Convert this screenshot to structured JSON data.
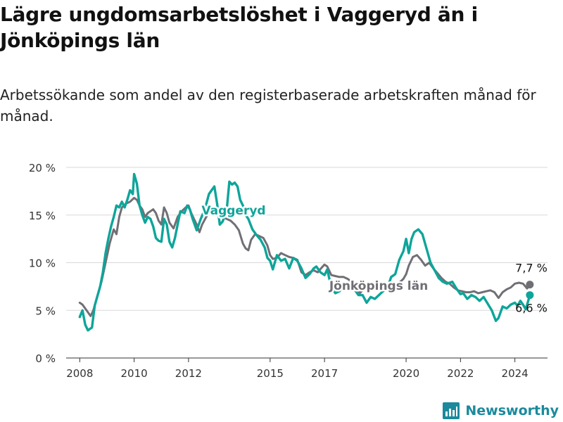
{
  "title": "Lägre ungdomsarbetslöshet i Vaggeryd än i Jönköpings län",
  "subtitle": "Arbetssökande som andel av den registerbaserade arbetskraften månad för månad.",
  "branding": {
    "name": "Newsworthy"
  },
  "colors": {
    "vaggeryd": "#0ea59a",
    "lan": "#716f75",
    "grid": "#d9d9d9",
    "axis": "#333333"
  },
  "chart_data": {
    "type": "line",
    "title": "Lägre ungdomsarbetslöshet i Vaggeryd än i Jönköpings län",
    "xlabel": "",
    "ylabel": "",
    "xlim": [
      2007.5,
      2025.2
    ],
    "ylim": [
      0,
      20
    ],
    "y_ticks": [
      0,
      5,
      10,
      15,
      20
    ],
    "y_tick_labels": [
      "0 %",
      "5 %",
      "10 %",
      "15 %",
      "20 %"
    ],
    "x_ticks": [
      2008,
      2010,
      2012,
      2015,
      2017,
      2020,
      2022,
      2024
    ],
    "x_tick_labels": [
      "2008",
      "2010",
      "2012",
      "2015",
      "2017",
      "2020",
      "2022",
      "2024"
    ],
    "grid": true,
    "series": [
      {
        "name": "Jönköpings län",
        "label": "Jönköpings län",
        "end_label": "7,7 %",
        "end_value": 7.7,
        "points": [
          [
            2008.0,
            5.8
          ],
          [
            2008.1,
            5.6
          ],
          [
            2008.25,
            5.0
          ],
          [
            2008.4,
            4.4
          ],
          [
            2008.5,
            5.0
          ],
          [
            2008.65,
            6.5
          ],
          [
            2008.8,
            8.0
          ],
          [
            2008.95,
            10.0
          ],
          [
            2009.1,
            12.0
          ],
          [
            2009.25,
            13.5
          ],
          [
            2009.35,
            13.0
          ],
          [
            2009.45,
            14.8
          ],
          [
            2009.55,
            15.8
          ],
          [
            2009.7,
            16.2
          ],
          [
            2009.85,
            16.4
          ],
          [
            2010.0,
            16.8
          ],
          [
            2010.1,
            16.6
          ],
          [
            2010.2,
            16.0
          ],
          [
            2010.3,
            15.6
          ],
          [
            2010.4,
            14.8
          ],
          [
            2010.5,
            15.2
          ],
          [
            2010.6,
            15.4
          ],
          [
            2010.7,
            15.6
          ],
          [
            2010.8,
            15.2
          ],
          [
            2010.9,
            14.4
          ],
          [
            2011.0,
            14.0
          ],
          [
            2011.1,
            15.8
          ],
          [
            2011.2,
            15.2
          ],
          [
            2011.3,
            14.2
          ],
          [
            2011.45,
            13.6
          ],
          [
            2011.6,
            14.8
          ],
          [
            2011.75,
            15.4
          ],
          [
            2011.9,
            15.8
          ],
          [
            2012.0,
            16.0
          ],
          [
            2012.1,
            15.2
          ],
          [
            2012.2,
            14.6
          ],
          [
            2012.3,
            14.0
          ],
          [
            2012.4,
            13.2
          ],
          [
            2012.5,
            14.0
          ],
          [
            2012.65,
            14.8
          ],
          [
            2012.8,
            15.4
          ],
          [
            2012.95,
            15.0
          ],
          [
            2013.1,
            15.0
          ],
          [
            2013.25,
            14.8
          ],
          [
            2013.4,
            14.6
          ],
          [
            2013.55,
            14.4
          ],
          [
            2013.7,
            14.0
          ],
          [
            2013.85,
            13.4
          ],
          [
            2014.0,
            12.0
          ],
          [
            2014.1,
            11.5
          ],
          [
            2014.2,
            11.3
          ],
          [
            2014.3,
            12.4
          ],
          [
            2014.45,
            13.0
          ],
          [
            2014.6,
            12.8
          ],
          [
            2014.75,
            12.6
          ],
          [
            2014.9,
            11.8
          ],
          [
            2015.0,
            10.8
          ],
          [
            2015.1,
            10.4
          ],
          [
            2015.25,
            10.5
          ],
          [
            2015.4,
            11.0
          ],
          [
            2015.55,
            10.8
          ],
          [
            2015.7,
            10.6
          ],
          [
            2015.85,
            10.5
          ],
          [
            2016.0,
            10.3
          ],
          [
            2016.15,
            9.0
          ],
          [
            2016.3,
            8.7
          ],
          [
            2016.45,
            9.0
          ],
          [
            2016.6,
            9.2
          ],
          [
            2016.75,
            9.0
          ],
          [
            2016.9,
            9.5
          ],
          [
            2017.0,
            9.8
          ],
          [
            2017.1,
            9.6
          ],
          [
            2017.25,
            8.7
          ],
          [
            2017.4,
            8.6
          ],
          [
            2017.55,
            8.5
          ],
          [
            2017.7,
            8.5
          ],
          [
            2017.85,
            8.3
          ],
          [
            2018.0,
            8.0
          ],
          [
            2018.15,
            7.4
          ],
          [
            2018.3,
            6.8
          ],
          [
            2018.45,
            7.3
          ],
          [
            2018.6,
            7.6
          ],
          [
            2018.8,
            7.6
          ],
          [
            2019.0,
            7.3
          ],
          [
            2019.2,
            7.3
          ],
          [
            2019.4,
            7.5
          ],
          [
            2019.6,
            7.8
          ],
          [
            2019.75,
            7.9
          ],
          [
            2019.9,
            8.3
          ],
          [
            2020.0,
            8.8
          ],
          [
            2020.1,
            9.7
          ],
          [
            2020.25,
            10.6
          ],
          [
            2020.4,
            10.8
          ],
          [
            2020.55,
            10.3
          ],
          [
            2020.7,
            9.7
          ],
          [
            2020.85,
            10.0
          ],
          [
            2021.0,
            9.4
          ],
          [
            2021.15,
            8.9
          ],
          [
            2021.3,
            8.4
          ],
          [
            2021.45,
            8.0
          ],
          [
            2021.6,
            7.8
          ],
          [
            2021.75,
            7.4
          ],
          [
            2021.9,
            7.1
          ],
          [
            2022.05,
            7.0
          ],
          [
            2022.2,
            6.9
          ],
          [
            2022.35,
            6.9
          ],
          [
            2022.5,
            7.0
          ],
          [
            2022.65,
            6.8
          ],
          [
            2022.8,
            6.9
          ],
          [
            2022.95,
            7.0
          ],
          [
            2023.1,
            7.1
          ],
          [
            2023.25,
            6.9
          ],
          [
            2023.4,
            6.3
          ],
          [
            2023.55,
            6.9
          ],
          [
            2023.7,
            7.2
          ],
          [
            2023.85,
            7.4
          ],
          [
            2024.0,
            7.8
          ],
          [
            2024.15,
            7.9
          ],
          [
            2024.3,
            7.8
          ],
          [
            2024.45,
            7.3
          ],
          [
            2024.55,
            7.7
          ]
        ]
      },
      {
        "name": "Vaggeryd",
        "label": "Vaggeryd",
        "end_label": "6,6 %",
        "end_value": 6.6,
        "points": [
          [
            2008.0,
            4.3
          ],
          [
            2008.1,
            5.0
          ],
          [
            2008.2,
            3.5
          ],
          [
            2008.3,
            2.9
          ],
          [
            2008.45,
            3.2
          ],
          [
            2008.55,
            5.5
          ],
          [
            2008.65,
            6.5
          ],
          [
            2008.75,
            7.5
          ],
          [
            2008.85,
            9.0
          ],
          [
            2008.95,
            11.0
          ],
          [
            2009.05,
            12.5
          ],
          [
            2009.15,
            13.8
          ],
          [
            2009.25,
            14.8
          ],
          [
            2009.35,
            16.0
          ],
          [
            2009.45,
            15.8
          ],
          [
            2009.55,
            16.4
          ],
          [
            2009.65,
            15.8
          ],
          [
            2009.75,
            16.6
          ],
          [
            2009.85,
            17.6
          ],
          [
            2009.95,
            17.2
          ],
          [
            2010.0,
            19.3
          ],
          [
            2010.1,
            18.3
          ],
          [
            2010.2,
            16.0
          ],
          [
            2010.3,
            15.0
          ],
          [
            2010.4,
            14.2
          ],
          [
            2010.5,
            14.8
          ],
          [
            2010.6,
            14.6
          ],
          [
            2010.7,
            13.8
          ],
          [
            2010.8,
            12.6
          ],
          [
            2010.9,
            12.3
          ],
          [
            2011.0,
            12.2
          ],
          [
            2011.1,
            14.6
          ],
          [
            2011.2,
            14.0
          ],
          [
            2011.3,
            12.2
          ],
          [
            2011.4,
            11.6
          ],
          [
            2011.5,
            12.6
          ],
          [
            2011.6,
            14.0
          ],
          [
            2011.7,
            15.4
          ],
          [
            2011.85,
            15.2
          ],
          [
            2011.95,
            16.0
          ],
          [
            2012.05,
            15.6
          ],
          [
            2012.15,
            14.6
          ],
          [
            2012.3,
            13.4
          ],
          [
            2012.45,
            14.6
          ],
          [
            2012.6,
            15.6
          ],
          [
            2012.75,
            17.2
          ],
          [
            2012.85,
            17.6
          ],
          [
            2012.95,
            18.0
          ],
          [
            2013.05,
            16.2
          ],
          [
            2013.15,
            14.0
          ],
          [
            2013.25,
            14.3
          ],
          [
            2013.4,
            15.4
          ],
          [
            2013.5,
            18.5
          ],
          [
            2013.6,
            18.2
          ],
          [
            2013.7,
            18.4
          ],
          [
            2013.8,
            18.0
          ],
          [
            2013.9,
            16.6
          ],
          [
            2014.0,
            16.0
          ],
          [
            2014.1,
            15.0
          ],
          [
            2014.2,
            14.6
          ],
          [
            2014.35,
            13.5
          ],
          [
            2014.5,
            12.9
          ],
          [
            2014.65,
            12.4
          ],
          [
            2014.8,
            11.6
          ],
          [
            2014.9,
            10.5
          ],
          [
            2015.0,
            10.2
          ],
          [
            2015.1,
            9.3
          ],
          [
            2015.25,
            10.8
          ],
          [
            2015.4,
            10.2
          ],
          [
            2015.55,
            10.4
          ],
          [
            2015.7,
            9.4
          ],
          [
            2015.85,
            10.5
          ],
          [
            2016.0,
            10.2
          ],
          [
            2016.15,
            9.4
          ],
          [
            2016.3,
            8.4
          ],
          [
            2016.45,
            8.8
          ],
          [
            2016.6,
            9.4
          ],
          [
            2016.7,
            9.6
          ],
          [
            2016.85,
            9.0
          ],
          [
            2017.0,
            8.7
          ],
          [
            2017.1,
            9.3
          ],
          [
            2017.25,
            7.4
          ],
          [
            2017.4,
            6.8
          ],
          [
            2017.55,
            7.0
          ],
          [
            2017.7,
            7.6
          ],
          [
            2018.0,
            7.6
          ],
          [
            2018.25,
            6.6
          ],
          [
            2018.4,
            6.6
          ],
          [
            2018.55,
            5.8
          ],
          [
            2018.7,
            6.4
          ],
          [
            2018.85,
            6.2
          ],
          [
            2019.0,
            6.6
          ],
          [
            2019.15,
            7.0
          ],
          [
            2019.3,
            7.2
          ],
          [
            2019.45,
            8.5
          ],
          [
            2019.6,
            8.8
          ],
          [
            2019.75,
            10.3
          ],
          [
            2019.9,
            11.2
          ],
          [
            2020.0,
            12.5
          ],
          [
            2020.1,
            11.0
          ],
          [
            2020.2,
            12.5
          ],
          [
            2020.3,
            13.2
          ],
          [
            2020.45,
            13.5
          ],
          [
            2020.6,
            13.0
          ],
          [
            2020.75,
            11.5
          ],
          [
            2020.9,
            10.0
          ],
          [
            2021.05,
            9.2
          ],
          [
            2021.2,
            8.4
          ],
          [
            2021.35,
            8.0
          ],
          [
            2021.5,
            7.8
          ],
          [
            2021.7,
            8.0
          ],
          [
            2021.85,
            7.3
          ],
          [
            2022.0,
            6.7
          ],
          [
            2022.1,
            6.8
          ],
          [
            2022.25,
            6.2
          ],
          [
            2022.4,
            6.6
          ],
          [
            2022.55,
            6.4
          ],
          [
            2022.7,
            6.0
          ],
          [
            2022.85,
            6.4
          ],
          [
            2023.0,
            5.7
          ],
          [
            2023.15,
            5.0
          ],
          [
            2023.3,
            3.9
          ],
          [
            2023.4,
            4.2
          ],
          [
            2023.55,
            5.4
          ],
          [
            2023.7,
            5.2
          ],
          [
            2023.85,
            5.6
          ],
          [
            2024.0,
            5.8
          ],
          [
            2024.1,
            5.5
          ],
          [
            2024.2,
            6.0
          ],
          [
            2024.3,
            5.6
          ],
          [
            2024.4,
            5.1
          ],
          [
            2024.55,
            6.6
          ]
        ]
      }
    ]
  }
}
